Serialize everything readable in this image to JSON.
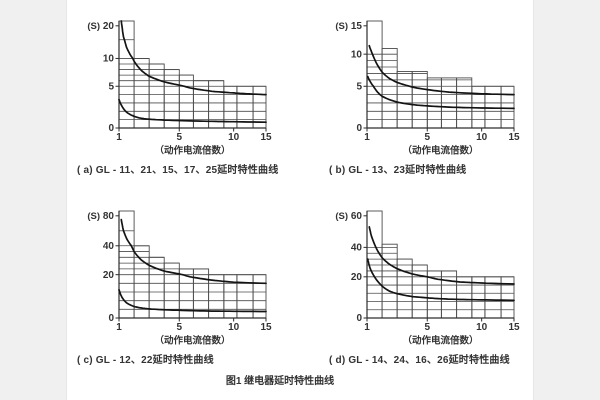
{
  "page": {
    "figure_caption": "图1  继电器延时特性曲线",
    "y_unit_label": "(S)",
    "x_axis_label": "（动作电流倍数）"
  },
  "colors": {
    "page_bg": "#f0f0f0",
    "panel_bg": "#ffffff",
    "grid": "#4b4b4b",
    "axis": "#2d2d2d",
    "curve": "#141414",
    "text": "#333333"
  },
  "chart_data": [
    {
      "id": "a",
      "type": "line",
      "caption": "( a) GL - 11、21、15、17、25延时特性曲线",
      "xlabel": "（动作电流倍数）",
      "ylabel": "(S)",
      "x_ticks": [
        1,
        5,
        10,
        15
      ],
      "y_ticks": [
        0,
        5,
        10,
        20
      ],
      "xlim": [
        1,
        15
      ],
      "ylim": [
        0,
        22
      ],
      "x_anchors": [
        [
          1,
          0
        ],
        [
          5,
          0.41
        ],
        [
          10,
          0.78
        ],
        [
          15,
          1.0
        ]
      ],
      "y_anchors": [
        [
          0,
          0
        ],
        [
          5,
          0.39
        ],
        [
          10,
          0.65
        ],
        [
          15,
          0.825
        ],
        [
          20,
          0.955
        ],
        [
          22,
          1.0
        ]
      ],
      "step_boundaries": [
        1,
        2,
        3,
        4,
        5,
        6.3,
        7.7,
        9.1,
        10.5,
        13,
        15
      ],
      "step_heights": [
        22,
        10,
        9,
        8,
        7,
        6,
        6,
        5,
        5,
        5
      ],
      "gridlines": [
        1,
        2,
        3,
        4,
        5,
        6,
        7,
        8,
        9,
        10,
        15
      ],
      "series": [
        {
          "name": "upper-limit-curve",
          "points": [
            [
              1.15,
              22
            ],
            [
              1.3,
              16
            ],
            [
              1.5,
              13
            ],
            [
              2,
              9.5
            ],
            [
              2.5,
              7.8
            ],
            [
              3,
              6.8
            ],
            [
              4,
              5.8
            ],
            [
              5,
              5.2
            ],
            [
              6,
              4.8
            ],
            [
              8,
              4.4
            ],
            [
              10,
              4.2
            ],
            [
              12,
              4.1
            ],
            [
              15,
              4
            ]
          ]
        },
        {
          "name": "lower-limit-curve",
          "points": [
            [
              1,
              3.4
            ],
            [
              1.2,
              2.6
            ],
            [
              1.5,
              1.9
            ],
            [
              2,
              1.4
            ],
            [
              2.5,
              1.15
            ],
            [
              3,
              1.05
            ],
            [
              4,
              0.95
            ],
            [
              6,
              0.85
            ],
            [
              8,
              0.8
            ],
            [
              10,
              0.75
            ],
            [
              15,
              0.7
            ]
          ]
        }
      ]
    },
    {
      "id": "b",
      "type": "line",
      "caption": "( b) GL - 13、23延时特性曲线",
      "xlabel": "（动作电流倍数）",
      "ylabel": "(S)",
      "x_ticks": [
        1,
        5,
        10,
        15
      ],
      "y_ticks": [
        0,
        5,
        10,
        15
      ],
      "xlim": [
        1,
        15
      ],
      "ylim": [
        0,
        16.5
      ],
      "x_anchors": [
        [
          1,
          0
        ],
        [
          5,
          0.41
        ],
        [
          10,
          0.78
        ],
        [
          15,
          1.0
        ]
      ],
      "y_anchors": [
        [
          0,
          0
        ],
        [
          5,
          0.39
        ],
        [
          10,
          0.69
        ],
        [
          15,
          0.955
        ],
        [
          16.5,
          1.0
        ]
      ],
      "step_boundaries": [
        1,
        2,
        3,
        4,
        5,
        6.3,
        7.7,
        9.1,
        10.5,
        13,
        15
      ],
      "step_heights": [
        16.5,
        11,
        7.3,
        7.3,
        6.3,
        6.3,
        6.3,
        5,
        5,
        5
      ],
      "gridlines": [
        1,
        2,
        3,
        4,
        5,
        6,
        7,
        8,
        9,
        10
      ],
      "series": [
        {
          "name": "upper-limit-curve",
          "points": [
            [
              1.15,
              11.5
            ],
            [
              1.4,
              9.8
            ],
            [
              1.7,
              8.3
            ],
            [
              2,
              7.2
            ],
            [
              2.5,
              6.2
            ],
            [
              3,
              5.6
            ],
            [
              4,
              4.9
            ],
            [
              5,
              4.6
            ],
            [
              7,
              4.3
            ],
            [
              10,
              4.1
            ],
            [
              15,
              4
            ]
          ]
        },
        {
          "name": "lower-limit-curve",
          "points": [
            [
              1.05,
              6.5
            ],
            [
              1.3,
              5.4
            ],
            [
              1.7,
              4.3
            ],
            [
              2,
              3.8
            ],
            [
              3,
              3.1
            ],
            [
              4,
              2.8
            ],
            [
              5,
              2.65
            ],
            [
              7,
              2.5
            ],
            [
              10,
              2.4
            ],
            [
              15,
              2.35
            ]
          ]
        }
      ]
    },
    {
      "id": "c",
      "type": "line",
      "caption": "( c) GL - 12、22延时特性曲线",
      "xlabel": "（动作电流倍数）",
      "ylabel": "(S)",
      "x_ticks": [
        1,
        5,
        10,
        15
      ],
      "y_ticks": [
        0,
        20,
        40,
        80
      ],
      "xlim": [
        1,
        15
      ],
      "ylim": [
        0,
        88
      ],
      "x_anchors": [
        [
          1,
          0
        ],
        [
          5,
          0.41
        ],
        [
          10,
          0.78
        ],
        [
          15,
          1.0
        ]
      ],
      "y_anchors": [
        [
          0,
          0
        ],
        [
          20,
          0.405
        ],
        [
          40,
          0.675
        ],
        [
          80,
          0.955
        ],
        [
          88,
          1.0
        ]
      ],
      "step_boundaries": [
        1,
        2,
        3,
        4,
        5,
        6.3,
        7.7,
        9.1,
        10.5,
        13,
        15
      ],
      "step_heights": [
        88,
        40,
        32,
        28,
        24,
        24,
        20,
        20,
        20,
        20
      ],
      "gridlines": [
        4,
        8,
        12,
        16,
        20,
        24,
        28,
        32,
        36,
        40,
        60
      ],
      "series": [
        {
          "name": "upper-limit-curve",
          "points": [
            [
              1.15,
              75
            ],
            [
              1.3,
              60
            ],
            [
              1.5,
              50
            ],
            [
              2,
              36
            ],
            [
              2.5,
              30
            ],
            [
              3,
              26.5
            ],
            [
              4,
              22.5
            ],
            [
              5,
              20.5
            ],
            [
              6,
              19
            ],
            [
              8,
              17.5
            ],
            [
              10,
              16.5
            ],
            [
              15,
              16
            ]
          ]
        },
        {
          "name": "lower-limit-curve",
          "points": [
            [
              1,
              13
            ],
            [
              1.2,
              9.5
            ],
            [
              1.5,
              7
            ],
            [
              2,
              5.3
            ],
            [
              2.5,
              4.6
            ],
            [
              3,
              4.2
            ],
            [
              4,
              3.8
            ],
            [
              6,
              3.4
            ],
            [
              8,
              3.2
            ],
            [
              10,
              3.1
            ],
            [
              15,
              3
            ]
          ]
        }
      ]
    },
    {
      "id": "d",
      "type": "line",
      "caption": "( d) GL - 14、24、16、26延时特性曲线",
      "xlabel": "（动作电流倍数）",
      "ylabel": "(S)",
      "x_ticks": [
        1,
        5,
        10,
        15
      ],
      "y_ticks": [
        0,
        20,
        40,
        60
      ],
      "xlim": [
        1,
        15
      ],
      "ylim": [
        0,
        66
      ],
      "x_anchors": [
        [
          1,
          0
        ],
        [
          5,
          0.41
        ],
        [
          10,
          0.78
        ],
        [
          15,
          1.0
        ]
      ],
      "y_anchors": [
        [
          0,
          0
        ],
        [
          20,
          0.385
        ],
        [
          40,
          0.66
        ],
        [
          60,
          0.955
        ],
        [
          66,
          1.0
        ]
      ],
      "step_boundaries": [
        1,
        2,
        3,
        4,
        5,
        6.3,
        7.7,
        9.1,
        10.5,
        13,
        15
      ],
      "step_heights": [
        66,
        42,
        32,
        28,
        24,
        24,
        20,
        20,
        20,
        20
      ],
      "gridlines": [
        4,
        8,
        12,
        16,
        20,
        24,
        28,
        32,
        36,
        40
      ],
      "series": [
        {
          "name": "upper-limit-curve",
          "points": [
            [
              1.15,
              53
            ],
            [
              1.3,
              47
            ],
            [
              1.5,
              42
            ],
            [
              2,
              33
            ],
            [
              2.5,
              28.5
            ],
            [
              3,
              25.5
            ],
            [
              4,
              22
            ],
            [
              5,
              20
            ],
            [
              6,
              18.8
            ],
            [
              8,
              17.5
            ],
            [
              10,
              17
            ],
            [
              15,
              16.5
            ]
          ]
        },
        {
          "name": "lower-limit-curve",
          "points": [
            [
              1.05,
              32
            ],
            [
              1.2,
              26
            ],
            [
              1.5,
              20
            ],
            [
              2,
              15.5
            ],
            [
              2.5,
              13
            ],
            [
              3,
              11.8
            ],
            [
              4,
              10.4
            ],
            [
              5,
              9.8
            ],
            [
              6,
              9.4
            ],
            [
              8,
              9
            ],
            [
              10,
              8.8
            ],
            [
              15,
              8.6
            ]
          ]
        }
      ]
    }
  ]
}
